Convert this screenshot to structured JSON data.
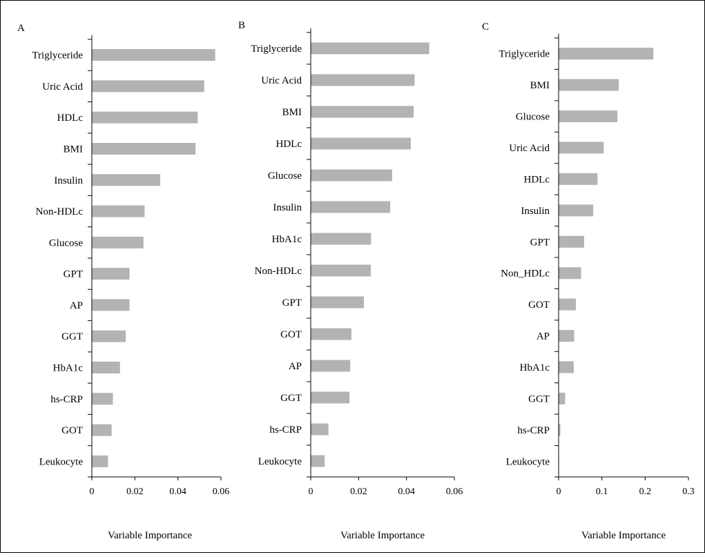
{
  "style": {
    "bar_color": "#b3b3b3",
    "axis_color": "#000000",
    "background": "#ffffff"
  },
  "chart_data": [
    {
      "type": "bar",
      "orientation": "horizontal",
      "panel_label": "A",
      "xlabel": "Variable Importance",
      "xlim": [
        0,
        0.06
      ],
      "xticks": [
        "0",
        "0.02",
        "0.04",
        "0.06"
      ],
      "categories": [
        "Triglyceride",
        "Uric Acid",
        "HDLc",
        "BMI",
        "Insulin",
        "Non-HDLc",
        "Glucose",
        "GPT",
        "AP",
        "GGT",
        "HbA1c",
        "hs-CRP",
        "GOT",
        "Leukocyte"
      ],
      "values": [
        0.0573,
        0.0522,
        0.0492,
        0.0482,
        0.0318,
        0.0245,
        0.024,
        0.0175,
        0.0175,
        0.0158,
        0.0131,
        0.0098,
        0.0092,
        0.0075
      ]
    },
    {
      "type": "bar",
      "orientation": "horizontal",
      "panel_label": "B",
      "xlabel": "Variable Importance",
      "xlim": [
        0,
        0.06
      ],
      "xticks": [
        "0",
        "0.02",
        "0.04",
        "0.06"
      ],
      "categories": [
        "Triglyceride",
        "Uric Acid",
        "BMI",
        "HDLc",
        "Glucose",
        "Insulin",
        "HbA1c",
        "Non-HDLc",
        "GPT",
        "GOT",
        "AP",
        "GGT",
        "hs-CRP",
        "Leukocyte"
      ],
      "values": [
        0.0495,
        0.0434,
        0.043,
        0.0418,
        0.034,
        0.0332,
        0.0252,
        0.0251,
        0.0222,
        0.017,
        0.0165,
        0.0162,
        0.0074,
        0.0058
      ]
    },
    {
      "type": "bar",
      "orientation": "horizontal",
      "panel_label": "C",
      "xlabel": "Variable Importance",
      "xlim": [
        0,
        0.3
      ],
      "xticks": [
        "0",
        "0.1",
        "0.2",
        "0.3"
      ],
      "categories": [
        "Triglyceride",
        "BMI",
        "Glucose",
        "Uric Acid",
        "HDLc",
        "Insulin",
        "GPT",
        "Non_HDLc",
        "GOT",
        "AP",
        "HbA1c",
        "GGT",
        "hs-CRP",
        "Leukocyte"
      ],
      "values": [
        0.219,
        0.139,
        0.136,
        0.104,
        0.09,
        0.08,
        0.059,
        0.052,
        0.04,
        0.036,
        0.035,
        0.015,
        0.004,
        0.0005
      ]
    }
  ]
}
